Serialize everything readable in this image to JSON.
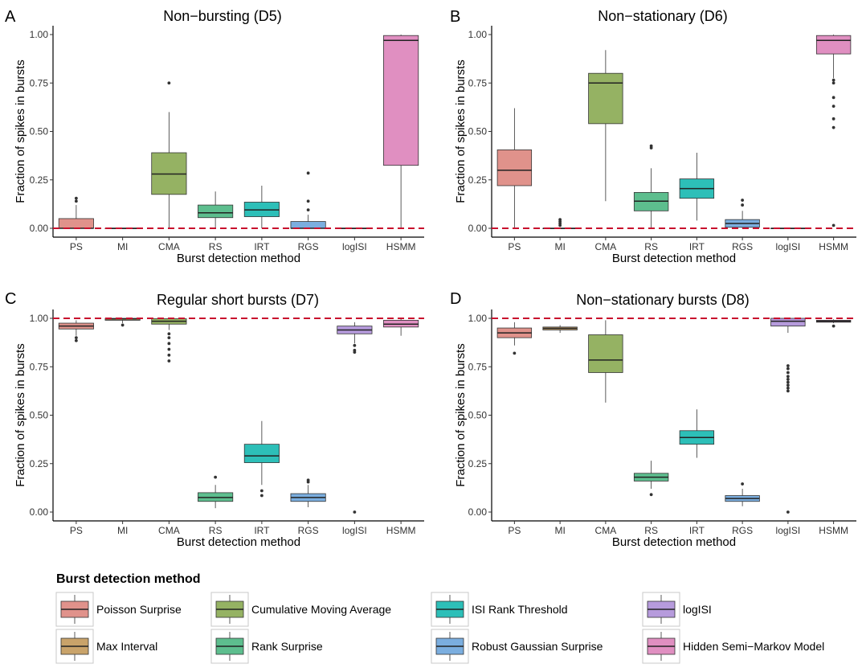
{
  "method_colors": {
    "PS": "#E0928B",
    "MI": "#C9A36A",
    "CMA": "#95B263",
    "RS": "#5DBE8E",
    "IRT": "#2DBFB8",
    "RGS": "#7BAEDF",
    "logISI": "#B69BDC",
    "HSMM": "#E08FC1"
  },
  "chart_data": [
    {
      "panel": "A",
      "type": "box",
      "title": "Non−bursting (D5)",
      "xlabel": "Burst detection method",
      "ylabel": "Fraction of spikes in bursts",
      "ylim": [
        0,
        1
      ],
      "yticks": [
        "0.00",
        "0.25",
        "0.50",
        "0.75",
        "1.00"
      ],
      "reference_line": 0,
      "categories": [
        "PS",
        "MI",
        "CMA",
        "RS",
        "IRT",
        "RGS",
        "logISI",
        "HSMM"
      ],
      "boxes": [
        {
          "method": "PS",
          "min": 0,
          "q1": 0,
          "median": 0,
          "q3": 0.05,
          "max": 0.12,
          "outliers": [
            0.14,
            0.155
          ]
        },
        {
          "method": "MI",
          "min": 0,
          "q1": 0,
          "median": 0,
          "q3": 0,
          "max": 0,
          "outliers": []
        },
        {
          "method": "CMA",
          "min": 0,
          "q1": 0.175,
          "median": 0.28,
          "q3": 0.39,
          "max": 0.6,
          "outliers": [
            0.75
          ]
        },
        {
          "method": "RS",
          "min": 0,
          "q1": 0.055,
          "median": 0.08,
          "q3": 0.12,
          "max": 0.19,
          "outliers": []
        },
        {
          "method": "IRT",
          "min": 0,
          "q1": 0.06,
          "median": 0.095,
          "q3": 0.135,
          "max": 0.22,
          "outliers": []
        },
        {
          "method": "RGS",
          "min": 0,
          "q1": 0,
          "median": 0,
          "q3": 0.035,
          "max": 0.07,
          "outliers": [
            0.095,
            0.14,
            0.285
          ]
        },
        {
          "method": "logISI",
          "min": 0,
          "q1": 0,
          "median": 0,
          "q3": 0,
          "max": 0,
          "outliers": []
        },
        {
          "method": "HSMM",
          "min": 0,
          "q1": 0.325,
          "median": 0.97,
          "q3": 0.995,
          "max": 1.0,
          "outliers": []
        }
      ]
    },
    {
      "panel": "B",
      "type": "box",
      "title": "Non−stationary (D6)",
      "xlabel": "Burst detection method",
      "ylabel": "Fraction of spikes in bursts",
      "ylim": [
        0,
        1
      ],
      "yticks": [
        "0.00",
        "0.25",
        "0.50",
        "0.75",
        "1.00"
      ],
      "reference_line": 0,
      "categories": [
        "PS",
        "MI",
        "CMA",
        "RS",
        "IRT",
        "RGS",
        "logISI",
        "HSMM"
      ],
      "boxes": [
        {
          "method": "PS",
          "min": 0,
          "q1": 0.22,
          "median": 0.3,
          "q3": 0.405,
          "max": 0.62,
          "outliers": []
        },
        {
          "method": "MI",
          "min": 0,
          "q1": 0,
          "median": 0,
          "q3": 0,
          "max": 0,
          "outliers": [
            0.015,
            0.025,
            0.035,
            0.045
          ]
        },
        {
          "method": "CMA",
          "min": 0.14,
          "q1": 0.54,
          "median": 0.75,
          "q3": 0.8,
          "max": 0.92,
          "outliers": []
        },
        {
          "method": "RS",
          "min": 0,
          "q1": 0.09,
          "median": 0.14,
          "q3": 0.185,
          "max": 0.31,
          "outliers": [
            0.415,
            0.425
          ]
        },
        {
          "method": "IRT",
          "min": 0.04,
          "q1": 0.155,
          "median": 0.205,
          "q3": 0.255,
          "max": 0.39,
          "outliers": []
        },
        {
          "method": "RGS",
          "min": 0,
          "q1": 0.005,
          "median": 0.025,
          "q3": 0.045,
          "max": 0.09,
          "outliers": [
            0.12,
            0.145
          ]
        },
        {
          "method": "logISI",
          "min": 0,
          "q1": 0,
          "median": 0,
          "q3": 0,
          "max": 0,
          "outliers": []
        },
        {
          "method": "HSMM",
          "min": 0.775,
          "q1": 0.9,
          "median": 0.97,
          "q3": 0.995,
          "max": 1.0,
          "outliers": [
            0.015,
            0.52,
            0.565,
            0.63,
            0.675,
            0.75,
            0.765
          ]
        }
      ]
    },
    {
      "panel": "C",
      "type": "box",
      "title": "Regular short bursts (D7)",
      "xlabel": "Burst detection method",
      "ylabel": "Fraction of spikes in bursts",
      "ylim": [
        0,
        1
      ],
      "yticks": [
        "0.00",
        "0.25",
        "0.50",
        "0.75",
        "1.00"
      ],
      "reference_line": 1,
      "categories": [
        "PS",
        "MI",
        "CMA",
        "RS",
        "IRT",
        "RGS",
        "logISI",
        "HSMM"
      ],
      "boxes": [
        {
          "method": "PS",
          "min": 0.91,
          "q1": 0.945,
          "median": 0.96,
          "q3": 0.975,
          "max": 0.99,
          "outliers": [
            0.885,
            0.9
          ]
        },
        {
          "method": "MI",
          "min": 0.975,
          "q1": 0.99,
          "median": 0.997,
          "q3": 1.0,
          "max": 1.0,
          "outliers": [
            0.965
          ]
        },
        {
          "method": "CMA",
          "min": 0.94,
          "q1": 0.97,
          "median": 0.985,
          "q3": 0.998,
          "max": 1.0,
          "outliers": [
            0.78,
            0.81,
            0.84,
            0.87,
            0.9,
            0.92
          ]
        },
        {
          "method": "RS",
          "min": 0.02,
          "q1": 0.055,
          "median": 0.075,
          "q3": 0.1,
          "max": 0.14,
          "outliers": [
            0.18
          ]
        },
        {
          "method": "IRT",
          "min": 0.14,
          "q1": 0.255,
          "median": 0.29,
          "q3": 0.35,
          "max": 0.47,
          "outliers": [
            0.085,
            0.11
          ]
        },
        {
          "method": "RGS",
          "min": 0.025,
          "q1": 0.055,
          "median": 0.075,
          "q3": 0.095,
          "max": 0.14,
          "outliers": [
            0.155,
            0.165
          ]
        },
        {
          "method": "logISI",
          "min": 0.87,
          "q1": 0.92,
          "median": 0.94,
          "q3": 0.96,
          "max": 0.98,
          "outliers": [
            0.0,
            0.825,
            0.835,
            0.86
          ]
        },
        {
          "method": "HSMM",
          "min": 0.91,
          "q1": 0.955,
          "median": 0.97,
          "q3": 0.99,
          "max": 1.0,
          "outliers": []
        }
      ]
    },
    {
      "panel": "D",
      "type": "box",
      "title": "Non−stationary bursts (D8)",
      "xlabel": "Burst detection method",
      "ylabel": "Fraction of spikes in bursts",
      "ylim": [
        0,
        1
      ],
      "yticks": [
        "0.00",
        "0.25",
        "0.50",
        "0.75",
        "1.00"
      ],
      "reference_line": 1,
      "categories": [
        "PS",
        "MI",
        "CMA",
        "RS",
        "IRT",
        "RGS",
        "logISI",
        "HSMM"
      ],
      "boxes": [
        {
          "method": "PS",
          "min": 0.86,
          "q1": 0.9,
          "median": 0.925,
          "q3": 0.95,
          "max": 0.98,
          "outliers": [
            0.82
          ]
        },
        {
          "method": "MI",
          "min": 0.925,
          "q1": 0.94,
          "median": 0.948,
          "q3": 0.955,
          "max": 0.965,
          "outliers": []
        },
        {
          "method": "CMA",
          "min": 0.565,
          "q1": 0.72,
          "median": 0.785,
          "q3": 0.915,
          "max": 0.99,
          "outliers": []
        },
        {
          "method": "RS",
          "min": 0.12,
          "q1": 0.16,
          "median": 0.18,
          "q3": 0.2,
          "max": 0.265,
          "outliers": [
            0.09
          ]
        },
        {
          "method": "IRT",
          "min": 0.28,
          "q1": 0.35,
          "median": 0.385,
          "q3": 0.42,
          "max": 0.53,
          "outliers": []
        },
        {
          "method": "RGS",
          "min": 0.03,
          "q1": 0.055,
          "median": 0.07,
          "q3": 0.085,
          "max": 0.12,
          "outliers": [
            0.145
          ]
        },
        {
          "method": "logISI",
          "min": 0.925,
          "q1": 0.96,
          "median": 0.985,
          "q3": 1.0,
          "max": 1.0,
          "outliers": [
            0.0,
            0.625,
            0.64,
            0.655,
            0.67,
            0.685,
            0.7,
            0.72,
            0.74,
            0.755
          ]
        },
        {
          "method": "HSMM",
          "min": 0.975,
          "q1": 0.98,
          "median": 0.985,
          "q3": 0.99,
          "max": 0.995,
          "outliers": [
            0.96
          ]
        }
      ]
    }
  ],
  "legend": {
    "title": "Burst detection method",
    "items": [
      {
        "key": "PS",
        "label": "Poisson Surprise"
      },
      {
        "key": "CMA",
        "label": "Cumulative Moving Average"
      },
      {
        "key": "IRT",
        "label": "ISI Rank Threshold"
      },
      {
        "key": "logISI",
        "label": "logISI"
      },
      {
        "key": "MI",
        "label": "Max Interval"
      },
      {
        "key": "RS",
        "label": "Rank Surprise"
      },
      {
        "key": "RGS",
        "label": "Robust Gaussian Surprise"
      },
      {
        "key": "HSMM",
        "label": "Hidden Semi−Markov Model"
      }
    ]
  }
}
